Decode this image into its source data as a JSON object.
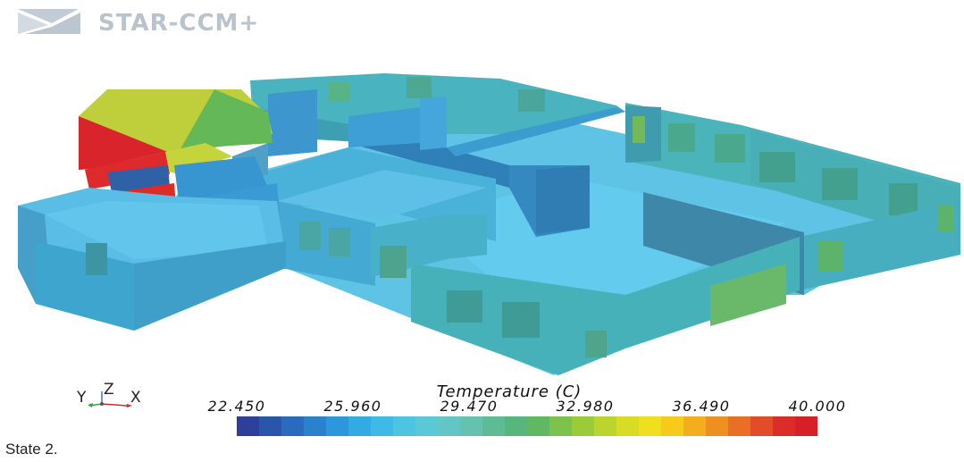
{
  "app": {
    "logo_text": "STAR-CCM+"
  },
  "legend": {
    "title": "Temperature (C)",
    "ticks": [
      "22.450",
      "25.960",
      "29.470",
      "32.980",
      "36.490",
      "40.000"
    ],
    "min": 22.45,
    "max": 40.0,
    "colors": [
      "#2b3f9b",
      "#2a55ad",
      "#2a6bbf",
      "#2a82cf",
      "#2c97dc",
      "#32aae3",
      "#3dbbe6",
      "#4cc4e2",
      "#5bc8d6",
      "#62c6c4",
      "#64c2ae",
      "#5dbc94",
      "#56b67c",
      "#60b962",
      "#7cc24c",
      "#9ccb3a",
      "#bcd42e",
      "#d9dc24",
      "#f0df1e",
      "#f7cb1c",
      "#f4ae1d",
      "#ee8f22",
      "#e96e26",
      "#e24c28",
      "#dc2c2a",
      "#d61f26"
    ]
  },
  "axes": {
    "y_label": "Y",
    "z_label": "Z",
    "x_label": "X"
  },
  "caption": {
    "text": "State 2."
  },
  "scene_colors": {
    "background": "#ffffff",
    "floor": "#5fc6e8",
    "wall_teal": "#4bb2b8",
    "wall_blue": "#3fa3dd",
    "wall_dark": "#2f7fb6",
    "window": "#4fae78",
    "hot": "#e02a26",
    "warm": "#c9d637"
  }
}
